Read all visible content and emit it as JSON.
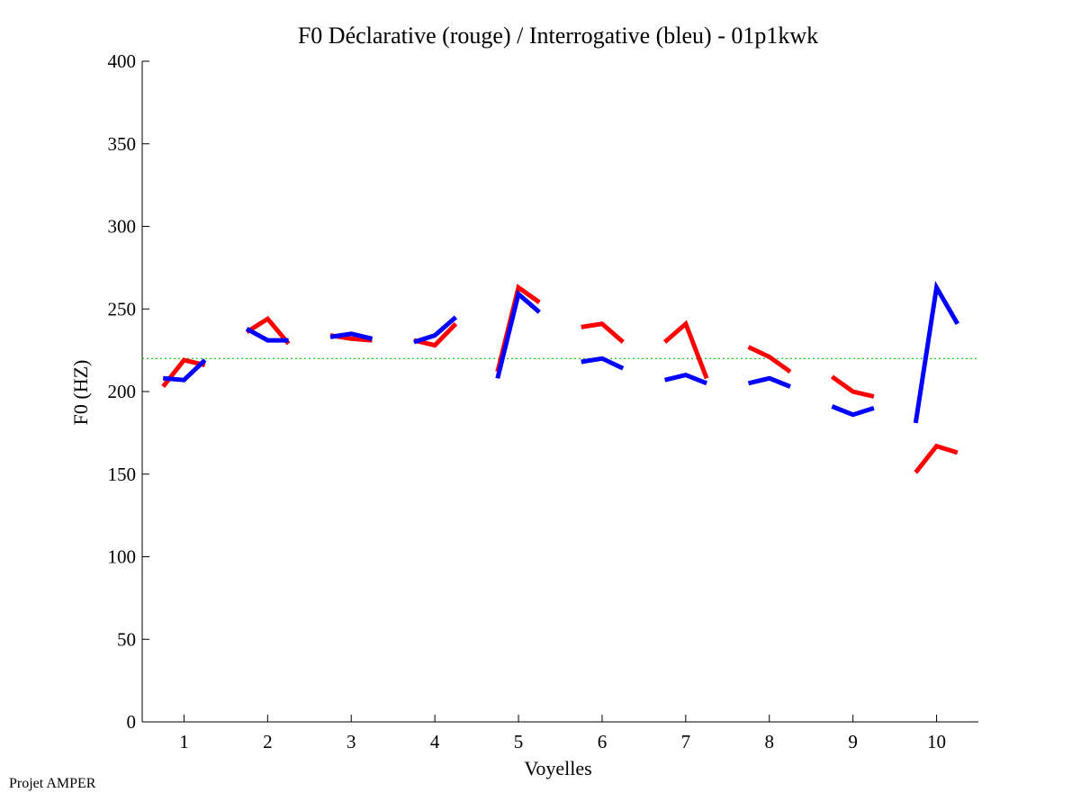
{
  "footer": "Projet AMPER",
  "chart_data": {
    "type": "line",
    "title": "F0 Déclarative (rouge) / Interrogative (bleu) - 01p1kwk",
    "xlabel": "Voyelles",
    "ylabel": "F0 (HZ)",
    "xlim": [
      0.5,
      10.5
    ],
    "ylim": [
      0,
      400
    ],
    "xticks": [
      1,
      2,
      3,
      4,
      5,
      6,
      7,
      8,
      9,
      10
    ],
    "yticks": [
      0,
      50,
      100,
      150,
      200,
      250,
      300,
      350,
      400
    ],
    "grid": false,
    "reference_line": {
      "y": 220,
      "color": "#00cc00",
      "style": "dotted"
    },
    "series": [
      {
        "color": "#ff0000",
        "segments": [
          {
            "x": [
              0.75,
              1.0,
              1.25
            ],
            "y": [
              203,
              219,
              216
            ]
          },
          {
            "x": [
              1.75,
              2.0,
              2.25
            ],
            "y": [
              236,
              244,
              229
            ]
          },
          {
            "x": [
              2.75,
              3.0,
              3.25
            ],
            "y": [
              234,
              232,
              231
            ]
          },
          {
            "x": [
              3.75,
              4.0,
              4.25
            ],
            "y": [
              231,
              228,
              241
            ]
          },
          {
            "x": [
              4.75,
              5.0,
              5.25
            ],
            "y": [
              212,
              263,
              254
            ]
          },
          {
            "x": [
              5.75,
              6.0,
              6.25
            ],
            "y": [
              239,
              241,
              230
            ]
          },
          {
            "x": [
              6.75,
              7.0,
              7.25
            ],
            "y": [
              230,
              241,
              208
            ]
          },
          {
            "x": [
              7.75,
              8.0,
              8.25
            ],
            "y": [
              227,
              221,
              212
            ]
          },
          {
            "x": [
              8.75,
              9.0,
              9.25
            ],
            "y": [
              209,
              200,
              197
            ]
          },
          {
            "x": [
              9.75,
              10.0,
              10.25
            ],
            "y": [
              151,
              167,
              163
            ]
          }
        ]
      },
      {
        "color": "#0000ff",
        "segments": [
          {
            "x": [
              0.75,
              1.0,
              1.25
            ],
            "y": [
              208,
              207,
              219
            ]
          },
          {
            "x": [
              1.75,
              2.0,
              2.25
            ],
            "y": [
              238,
              231,
              231
            ]
          },
          {
            "x": [
              2.75,
              3.0,
              3.25
            ],
            "y": [
              233,
              235,
              232
            ]
          },
          {
            "x": [
              3.75,
              4.0,
              4.25
            ],
            "y": [
              230,
              234,
              245
            ]
          },
          {
            "x": [
              4.75,
              5.0,
              5.25
            ],
            "y": [
              208,
              259,
              248
            ]
          },
          {
            "x": [
              5.75,
              6.0,
              6.25
            ],
            "y": [
              218,
              220,
              214
            ]
          },
          {
            "x": [
              6.75,
              7.0,
              7.25
            ],
            "y": [
              207,
              210,
              205
            ]
          },
          {
            "x": [
              7.75,
              8.0,
              8.25
            ],
            "y": [
              205,
              208,
              203
            ]
          },
          {
            "x": [
              8.75,
              9.0,
              9.25
            ],
            "y": [
              191,
              186,
              190
            ]
          },
          {
            "x": [
              9.75,
              10.0,
              10.25
            ],
            "y": [
              181,
              263,
              241
            ]
          }
        ]
      }
    ]
  }
}
